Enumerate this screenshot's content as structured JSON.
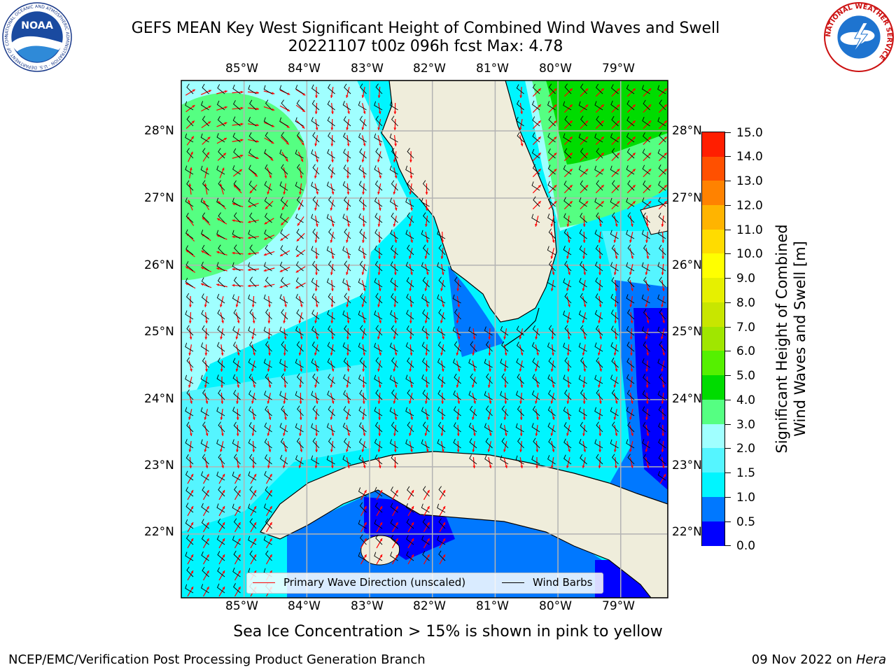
{
  "header": {
    "title_line1": "GEFS MEAN Key West Significant Height of Combined Wind Waves and Swell",
    "title_line2": "20221107 t00z 096h fcst   Max: 4.78"
  },
  "logos": {
    "left": "NOAA",
    "left_ring_text": "NATIONAL OCEANIC AND ATMOSPHERIC ADMINISTRATION · U.S. DEPARTMENT OF COMMERCE",
    "right_ring_text": "NATIONAL WEATHER SERVICE"
  },
  "map": {
    "lon_labels": [
      "85°W",
      "84°W",
      "83°W",
      "82°W",
      "81°W",
      "80°W",
      "79°W"
    ],
    "lat_labels": [
      "28°N",
      "27°N",
      "26°N",
      "25°N",
      "24°N",
      "23°N",
      "22°N"
    ],
    "lon_extent": [
      -86.0,
      -78.25
    ],
    "lat_extent": [
      21.05,
      28.75
    ],
    "max_value": 4.78,
    "land_color": "#efeddb",
    "grid_color": "#b3b3b3",
    "wave_arrow_color": "#ff0000",
    "wind_barb_color": "#000000"
  },
  "legend": {
    "wave_label": "Primary Wave Direction (unscaled)",
    "wind_label": "Wind Barbs"
  },
  "colorbar": {
    "title_line1": "Significant Height of Combined",
    "title_line2": "Wind Waves and Swell [m]",
    "tick_labels": [
      "0.0",
      "0.5",
      "1.0",
      "1.5",
      "2.0",
      "3.0",
      "4.0",
      "5.0",
      "6.0",
      "7.0",
      "8.0",
      "9.0",
      "10.0",
      "11.0",
      "12.0",
      "13.0",
      "14.0",
      "15.0"
    ],
    "colors": [
      "#0000ff",
      "#0078ff",
      "#00f5ff",
      "#55f5ff",
      "#a0ffff",
      "#55ff82",
      "#00dc00",
      "#55f000",
      "#a0e600",
      "#c8e600",
      "#e6f000",
      "#ffff00",
      "#ffdc00",
      "#ffb400",
      "#ff8200",
      "#ff5000",
      "#ff1e00"
    ]
  },
  "footer": {
    "ice_note": "Sea Ice Concentration > 15% is shown in pink to yellow",
    "left": "NCEP/EMC/Verification Post Processing Product Generation Branch",
    "right_prefix": "09 Nov 2022 on ",
    "right_host": "Hera"
  }
}
